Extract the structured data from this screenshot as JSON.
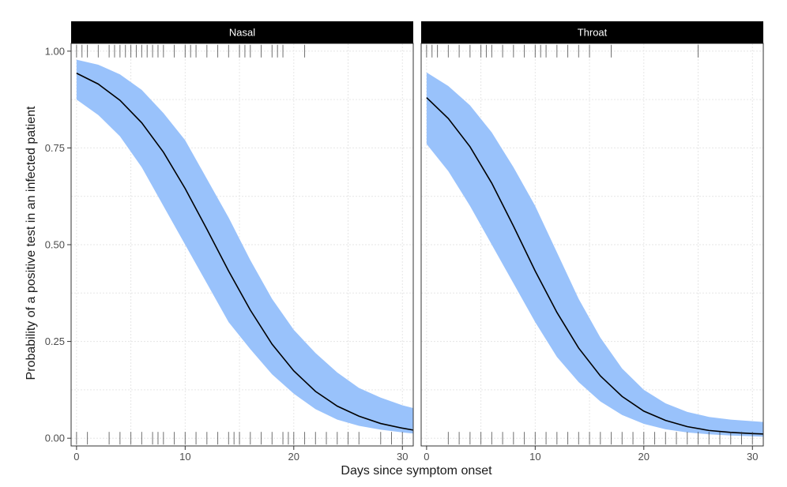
{
  "chart_data": {
    "type": "line",
    "xlabel": "Days since symptom onset",
    "ylabel": "Probability of a positive test in an infected patient",
    "xlim": [
      -0.5,
      31
    ],
    "ylim": [
      -0.02,
      1.02
    ],
    "x_ticks": [
      0,
      10,
      20,
      30
    ],
    "x_tick_labels": [
      "0",
      "10",
      "20",
      "30"
    ],
    "y_ticks": [
      0,
      0.25,
      0.5,
      0.75,
      1
    ],
    "y_tick_labels": [
      "0.00",
      "0.25",
      "0.50",
      "0.75",
      "1.00"
    ],
    "grid": true,
    "colors": {
      "band": "#99c2fb",
      "line": "#000000",
      "strip_bg": "#000000",
      "grid": "#e6e6e6",
      "rug": "#333333"
    },
    "panels": [
      {
        "name": "Nasal",
        "x": [
          0,
          2,
          4,
          6,
          8,
          10,
          12,
          14,
          16,
          18,
          20,
          22,
          24,
          26,
          28,
          30,
          31
        ],
        "y": [
          0.943,
          0.915,
          0.873,
          0.815,
          0.739,
          0.645,
          0.54,
          0.432,
          0.331,
          0.243,
          0.174,
          0.121,
          0.083,
          0.057,
          0.038,
          0.026,
          0.021
        ],
        "y_low": [
          0.875,
          0.835,
          0.78,
          0.7,
          0.6,
          0.5,
          0.4,
          0.3,
          0.23,
          0.165,
          0.115,
          0.075,
          0.048,
          0.032,
          0.022,
          0.015,
          0.012
        ],
        "y_high": [
          0.978,
          0.965,
          0.94,
          0.9,
          0.84,
          0.77,
          0.67,
          0.57,
          0.46,
          0.36,
          0.28,
          0.22,
          0.17,
          0.13,
          0.105,
          0.085,
          0.078
        ],
        "rug_positives": [
          0,
          0.5,
          1,
          2,
          3,
          3.5,
          4,
          4.5,
          5,
          5.5,
          6,
          6.5,
          7,
          7.5,
          8,
          9,
          10,
          10.5,
          11,
          12,
          13,
          14,
          15,
          15.5,
          16,
          17,
          18,
          18.5,
          19,
          21
        ],
        "rug_negatives": [
          0,
          1,
          3,
          4,
          5,
          6,
          7,
          7.5,
          8,
          9,
          10,
          11,
          12,
          13,
          14,
          14.5,
          15,
          16,
          17,
          18,
          19,
          19.5,
          20,
          21,
          22,
          23,
          24,
          25,
          26,
          28,
          29,
          30
        ]
      },
      {
        "name": "Throat",
        "x": [
          0,
          2,
          4,
          6,
          8,
          10,
          12,
          14,
          16,
          18,
          20,
          22,
          24,
          26,
          28,
          30,
          31
        ],
        "y": [
          0.88,
          0.826,
          0.753,
          0.659,
          0.548,
          0.432,
          0.325,
          0.233,
          0.161,
          0.108,
          0.07,
          0.046,
          0.03,
          0.02,
          0.015,
          0.012,
          0.011
        ],
        "y_low": [
          0.76,
          0.69,
          0.6,
          0.5,
          0.4,
          0.3,
          0.21,
          0.145,
          0.095,
          0.06,
          0.037,
          0.023,
          0.015,
          0.01,
          0.007,
          0.005,
          0.004
        ],
        "y_high": [
          0.945,
          0.91,
          0.86,
          0.79,
          0.7,
          0.6,
          0.48,
          0.36,
          0.26,
          0.18,
          0.125,
          0.09,
          0.068,
          0.055,
          0.048,
          0.044,
          0.042
        ],
        "rug_positives": [
          0,
          0.5,
          1,
          2,
          3,
          4,
          5,
          5.5,
          6,
          7,
          8,
          9,
          10,
          10.5,
          11,
          12,
          13,
          14,
          15,
          17,
          25
        ],
        "rug_negatives": [
          2,
          3,
          4,
          5,
          6,
          7,
          8,
          9,
          10,
          11,
          12,
          13,
          14,
          15,
          16,
          17,
          18,
          19,
          20,
          21,
          22,
          23,
          24,
          25,
          26,
          27,
          28,
          29,
          30
        ]
      }
    ]
  }
}
